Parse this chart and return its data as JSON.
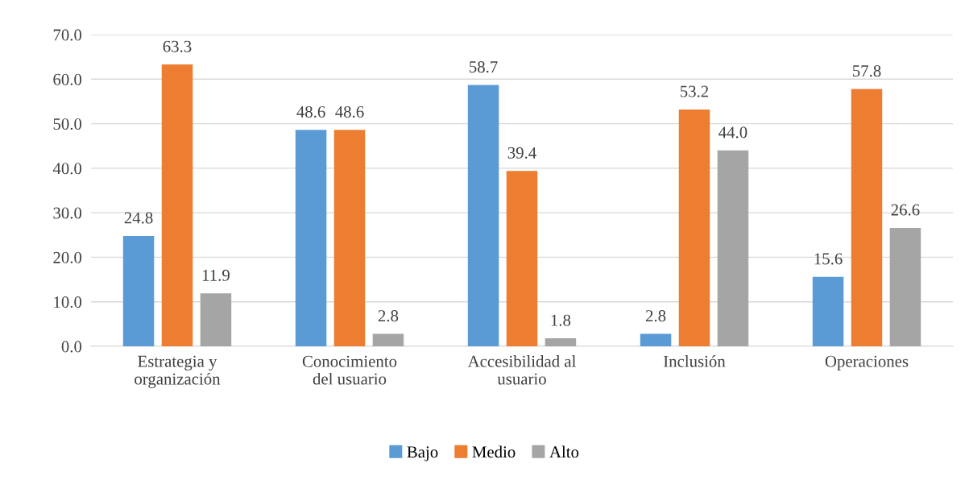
{
  "chart_data": {
    "type": "bar",
    "categories": [
      "Estrategia y\norganización",
      "Conocimiento\ndel usuario",
      "Accesibilidad al\nusuario",
      "Inclusión",
      "Operaciones"
    ],
    "series": [
      {
        "name": "Bajo",
        "color": "#5b9bd5",
        "values": [
          24.8,
          48.6,
          58.7,
          2.8,
          15.6
        ],
        "value_labels": [
          "24.8",
          "48.6",
          "58.7",
          "2.8",
          "15.6"
        ]
      },
      {
        "name": "Medio",
        "color": "#ed7d31",
        "values": [
          63.3,
          48.6,
          39.4,
          53.2,
          57.8
        ],
        "value_labels": [
          "63.3",
          "48.6",
          "39.4",
          "53.2",
          "57.8"
        ]
      },
      {
        "name": "Alto",
        "color": "#a5a5a5",
        "values": [
          11.9,
          2.8,
          1.8,
          44.0,
          26.6
        ],
        "value_labels": [
          "11.9",
          "2.8",
          "1.8",
          "44.0",
          "26.6"
        ]
      }
    ],
    "ylim": [
      0,
      70
    ],
    "yticks": [
      {
        "value": 0,
        "label": "0.0"
      },
      {
        "value": 10,
        "label": "10.0"
      },
      {
        "value": 20,
        "label": "20.0"
      },
      {
        "value": 30,
        "label": "30.0"
      },
      {
        "value": 40,
        "label": "40.0"
      },
      {
        "value": 50,
        "label": "50.0"
      },
      {
        "value": 60,
        "label": "60.0"
      },
      {
        "value": 70,
        "label": "70.0"
      }
    ],
    "grid": "y",
    "legend": "bottom"
  }
}
